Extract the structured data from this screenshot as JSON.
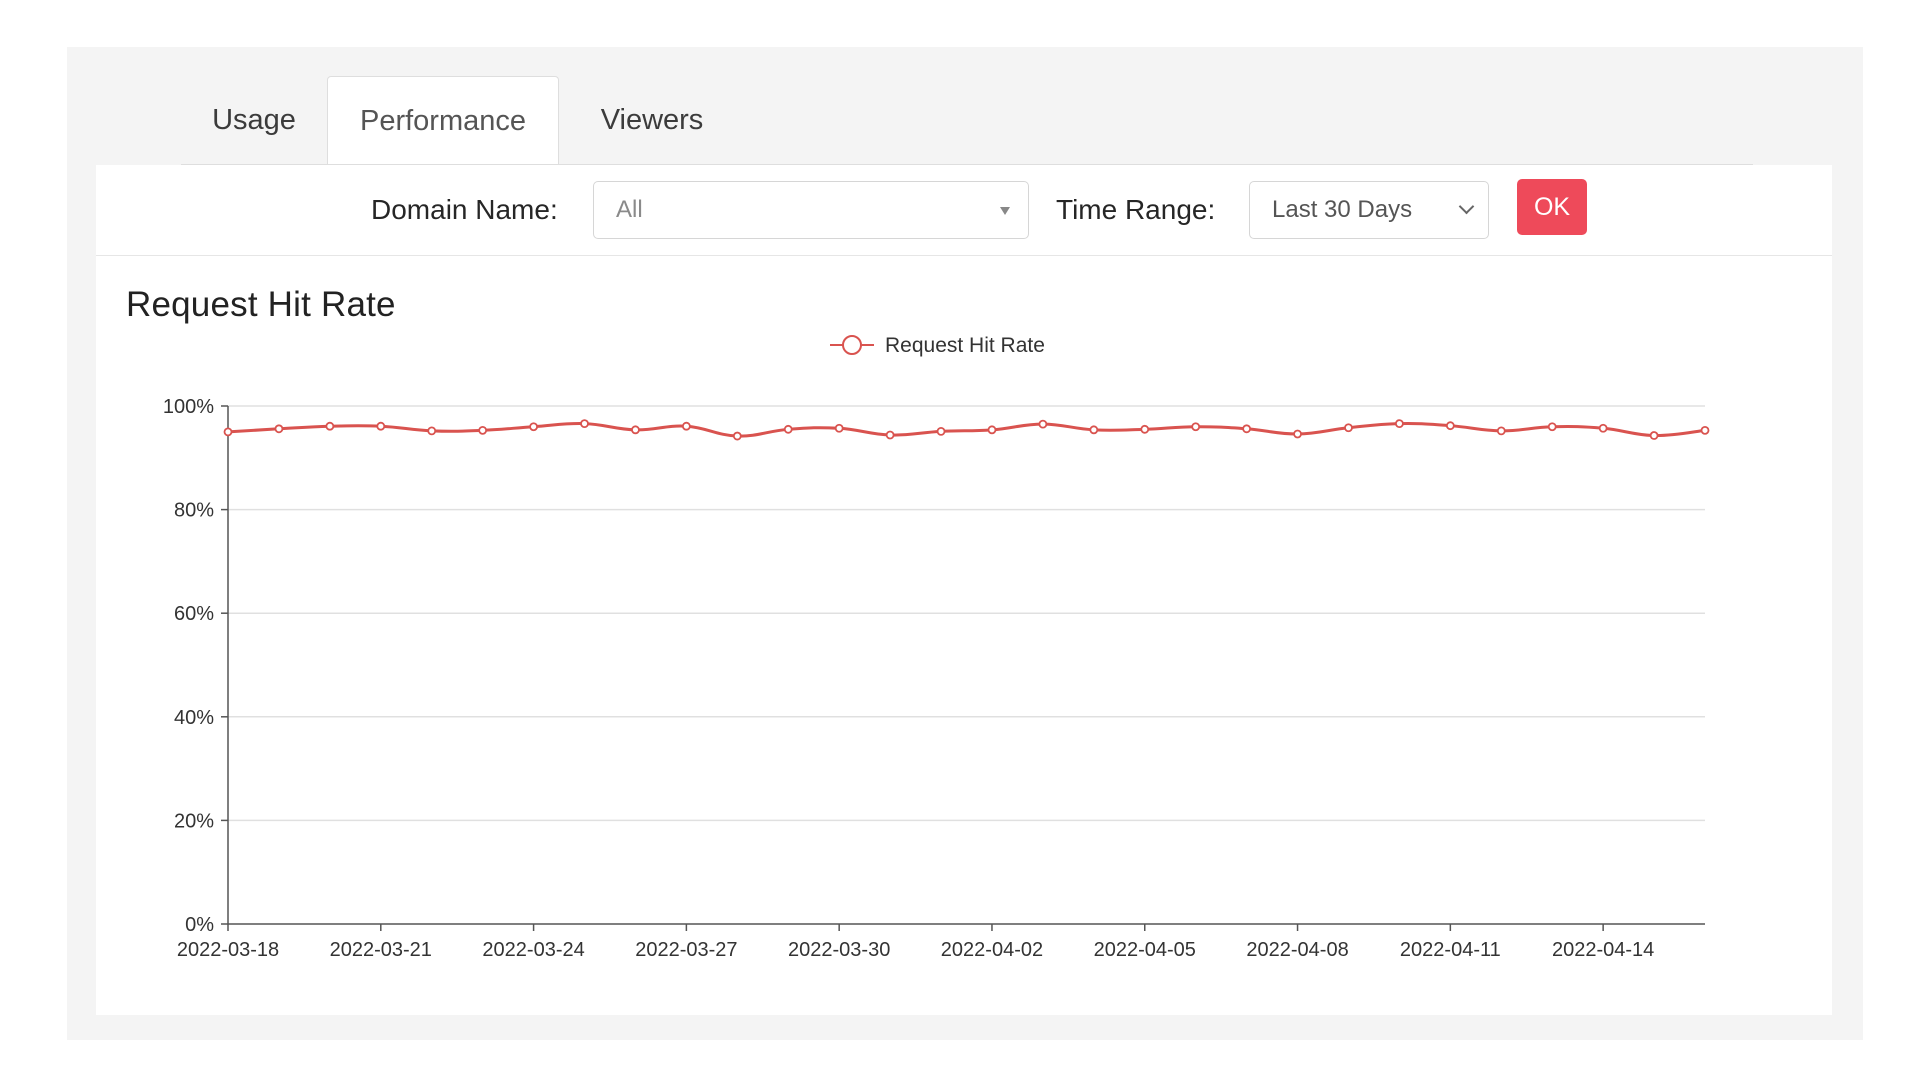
{
  "tabs": [
    {
      "label": "Usage"
    },
    {
      "label": "Performance",
      "active": true
    },
    {
      "label": "Viewers"
    }
  ],
  "filters": {
    "domain_label": "Domain Name:",
    "domain_value": "All",
    "time_label": "Time Range:",
    "time_value": "Last 30 Days",
    "ok_label": "OK"
  },
  "colors": {
    "accent": "#ee4a5a",
    "series": "#d9534f"
  },
  "chart_data": {
    "type": "line",
    "title": "Request Hit Rate",
    "xlabel": "",
    "ylabel": "",
    "ylim": [
      0,
      100
    ],
    "y_ticks": [
      "0%",
      "20%",
      "40%",
      "60%",
      "80%",
      "100%"
    ],
    "x_tick_labels": [
      "2022-03-18",
      "2022-03-21",
      "2022-03-24",
      "2022-03-27",
      "2022-03-30",
      "2022-04-02",
      "2022-04-05",
      "2022-04-08",
      "2022-04-11",
      "2022-04-14"
    ],
    "legend": "top-center",
    "grid": true,
    "x": [
      "2022-03-18",
      "2022-03-19",
      "2022-03-20",
      "2022-03-21",
      "2022-03-22",
      "2022-03-23",
      "2022-03-24",
      "2022-03-25",
      "2022-03-26",
      "2022-03-27",
      "2022-03-28",
      "2022-03-29",
      "2022-03-30",
      "2022-03-31",
      "2022-04-01",
      "2022-04-02",
      "2022-04-03",
      "2022-04-04",
      "2022-04-05",
      "2022-04-06",
      "2022-04-07",
      "2022-04-08",
      "2022-04-09",
      "2022-04-10",
      "2022-04-11",
      "2022-04-12",
      "2022-04-13",
      "2022-04-14",
      "2022-04-15",
      "2022-04-16"
    ],
    "series": [
      {
        "name": "Request Hit Rate",
        "values": [
          95.0,
          95.6,
          96.1,
          96.1,
          95.2,
          95.3,
          96.0,
          96.6,
          95.4,
          96.1,
          94.2,
          95.5,
          95.7,
          94.4,
          95.1,
          95.4,
          96.5,
          95.4,
          95.5,
          96.0,
          95.6,
          94.6,
          95.8,
          96.6,
          96.2,
          95.2,
          96.0,
          95.7,
          94.3,
          95.3
        ]
      }
    ]
  }
}
